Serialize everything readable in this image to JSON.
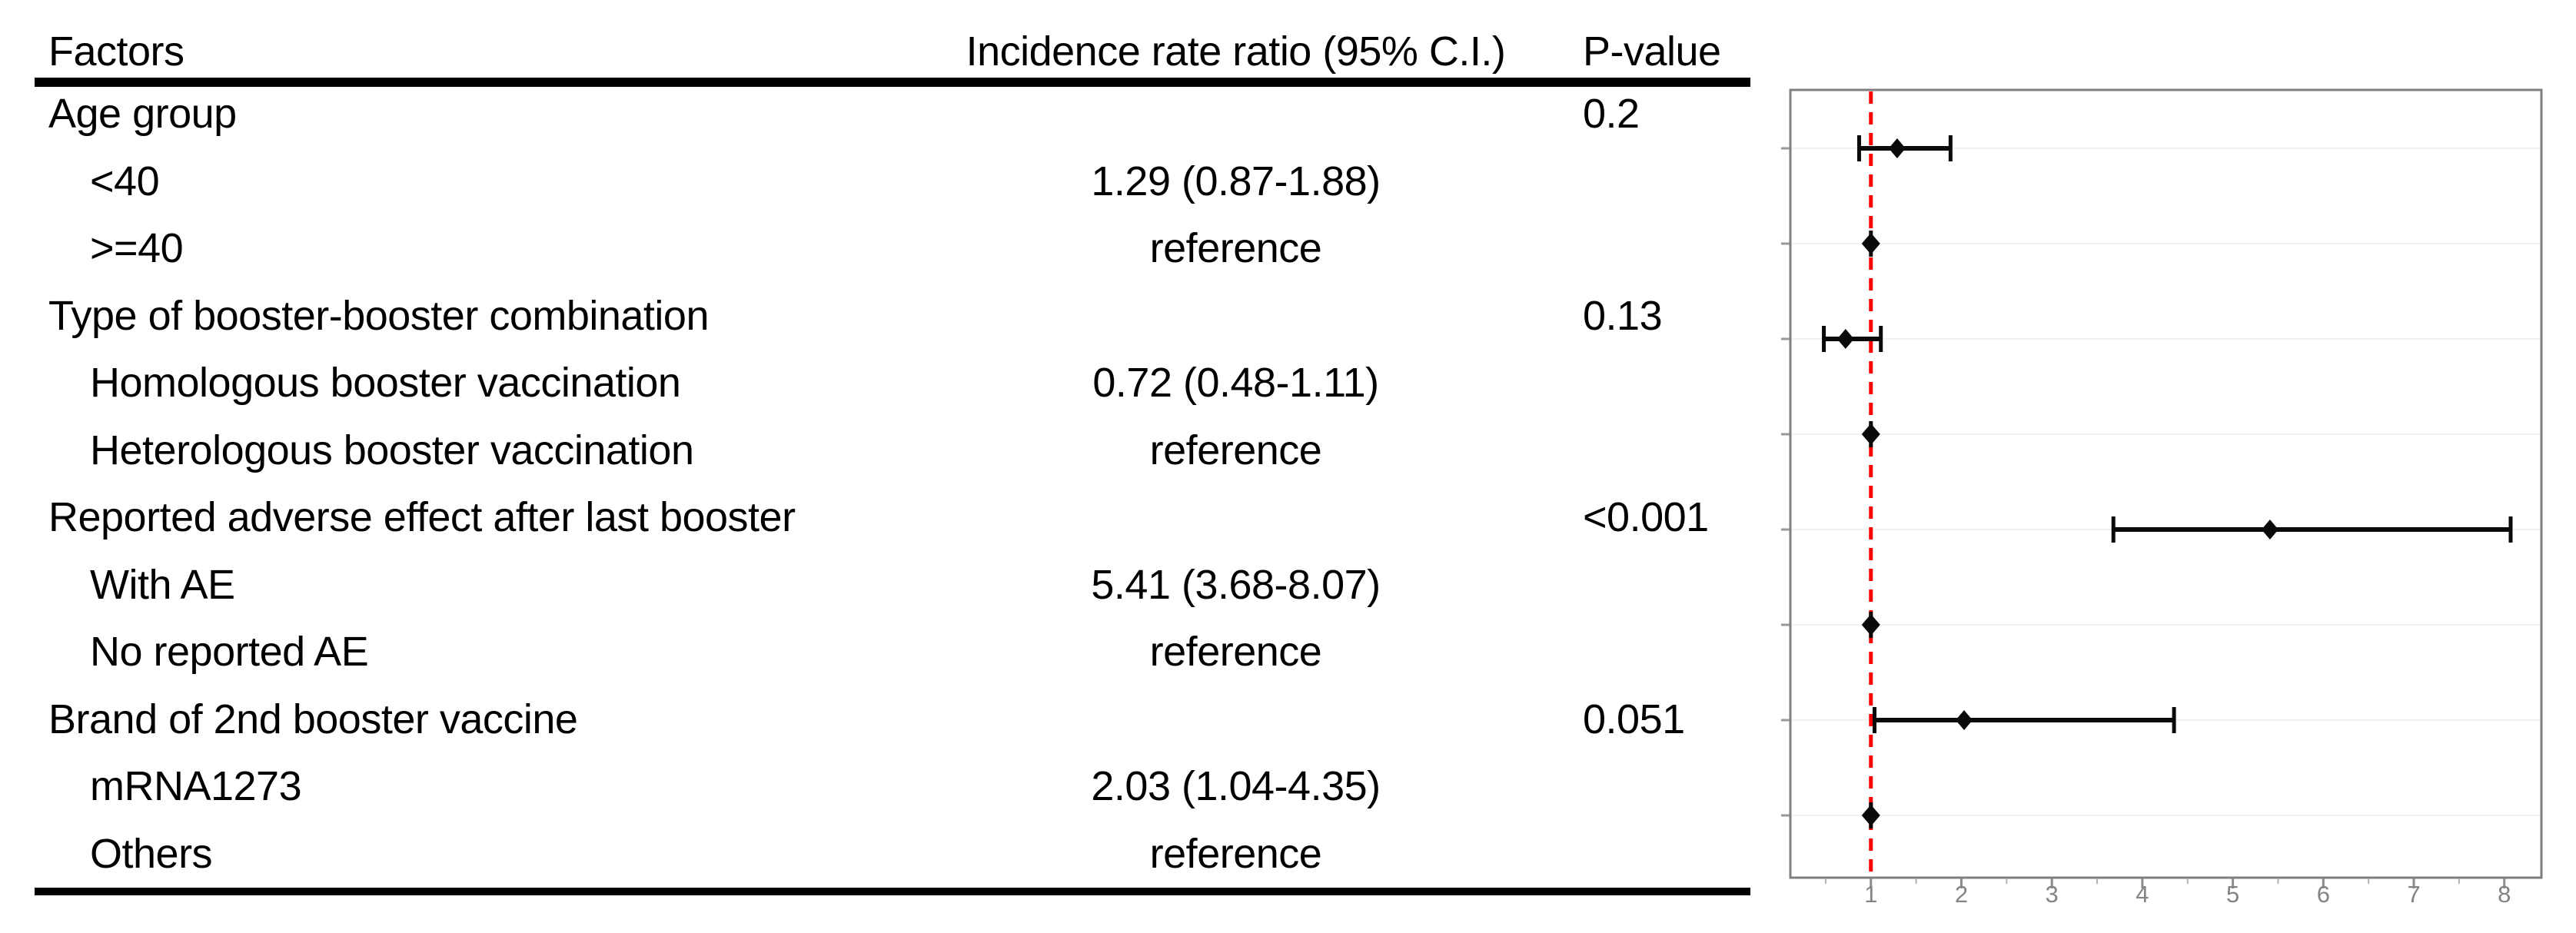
{
  "figure": {
    "table": {
      "headers": {
        "factors": "Factors",
        "irr": "Incidence rate ratio (95% C.I.)",
        "pvalue": "P-value"
      },
      "rows": [
        {
          "factor": "Age group",
          "indent": false,
          "irr": "",
          "pvalue": "0.2"
        },
        {
          "factor": "<40",
          "indent": true,
          "irr": "1.29 (0.87-1.88)",
          "pvalue": ""
        },
        {
          "factor": ">=40",
          "indent": true,
          "irr": "reference",
          "pvalue": ""
        },
        {
          "factor": "Type of booster-booster combination",
          "indent": false,
          "irr": "",
          "pvalue": "0.13"
        },
        {
          "factor": "Homologous booster vaccination",
          "indent": true,
          "irr": "0.72 (0.48-1.11)",
          "pvalue": ""
        },
        {
          "factor": "Heterologous booster vaccination",
          "indent": true,
          "irr": "reference",
          "pvalue": ""
        },
        {
          "factor": "Reported adverse effect after last booster",
          "indent": false,
          "irr": "",
          "pvalue": "<0.001"
        },
        {
          "factor": "With AE",
          "indent": true,
          "irr": "5.41 (3.68-8.07)",
          "pvalue": ""
        },
        {
          "factor": "No reported AE",
          "indent": true,
          "irr": "reference",
          "pvalue": ""
        },
        {
          "factor": "Brand of 2nd booster vaccine",
          "indent": false,
          "irr": "",
          "pvalue": "0.051"
        },
        {
          "factor": "mRNA1273",
          "indent": true,
          "irr": "2.03 (1.04-4.35)",
          "pvalue": ""
        },
        {
          "factor": "Others",
          "indent": true,
          "irr": "reference",
          "pvalue": ""
        }
      ]
    }
  },
  "chart_data": {
    "type": "scatter",
    "subtype": "forest-plot",
    "title": "",
    "xlabel": "",
    "ylabel": "",
    "xlim": [
      0.11,
      8.41
    ],
    "x_ticks": [
      1,
      2,
      3,
      4,
      5,
      6,
      7,
      8
    ],
    "x_tick_labels": [
      "1",
      "2",
      "3",
      "4",
      "5",
      "6",
      "7",
      "8"
    ],
    "x_minor_ticks": [
      0.5,
      1.5,
      2.5,
      3.5,
      4.5,
      5.5,
      6.5,
      7.5
    ],
    "grid": "faint horizontal line per row",
    "legend": "none",
    "reference_line_x": 1,
    "points": [
      {
        "label": "<40",
        "estimate": 1.29,
        "ci_low": 0.87,
        "ci_high": 1.88,
        "reference": false
      },
      {
        "label": ">=40",
        "estimate": 1.0,
        "ci_low": 1.0,
        "ci_high": 1.0,
        "reference": true
      },
      {
        "label": "Homologous booster vaccination",
        "estimate": 0.72,
        "ci_low": 0.48,
        "ci_high": 1.11,
        "reference": false
      },
      {
        "label": "Heterologous booster vaccination",
        "estimate": 1.0,
        "ci_low": 1.0,
        "ci_high": 1.0,
        "reference": true
      },
      {
        "label": "With AE",
        "estimate": 5.41,
        "ci_low": 3.68,
        "ci_high": 8.07,
        "reference": false
      },
      {
        "label": "No reported AE",
        "estimate": 1.0,
        "ci_low": 1.0,
        "ci_high": 1.0,
        "reference": true
      },
      {
        "label": "mRNA1273",
        "estimate": 2.03,
        "ci_low": 1.04,
        "ci_high": 4.35,
        "reference": false
      },
      {
        "label": "Others",
        "estimate": 1.0,
        "ci_low": 1.0,
        "ci_high": 1.0,
        "reference": true
      }
    ],
    "colors": {
      "reference_line": "#ff0000",
      "marker": "#0a0a0a",
      "axis": "#7f7f7f",
      "tick": "#8c8c8c",
      "minor_tick": "#b0b0b0",
      "tick_label": "#848484",
      "gridline": "#f2f2f2"
    }
  }
}
